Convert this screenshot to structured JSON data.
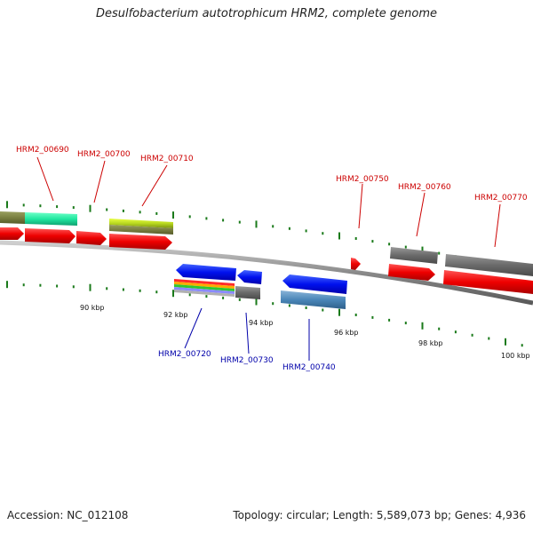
{
  "title": "Desulfobacterium autotrophicum HRM2, complete genome",
  "footer": {
    "accession": "Accession: NC_012108",
    "summary": "Topology: circular; Length: 5,589,073 bp; Genes: 4,936"
  },
  "colors": {
    "forward_label": "#cc0000",
    "reverse_label": "#0000aa",
    "backbone": "#8a8a8a",
    "tick": "#1a7a1a"
  },
  "scale_labels": [
    "90 kbp",
    "92 kbp",
    "94 kbp",
    "96 kbp",
    "98 kbp",
    "100 kbp"
  ],
  "forward_genes": [
    "HRM2_00690",
    "HRM2_00700",
    "HRM2_00710",
    "HRM2_00750",
    "HRM2_00760",
    "HRM2_00770"
  ],
  "reverse_genes": [
    "HRM2_00720",
    "HRM2_00730",
    "HRM2_00740"
  ]
}
